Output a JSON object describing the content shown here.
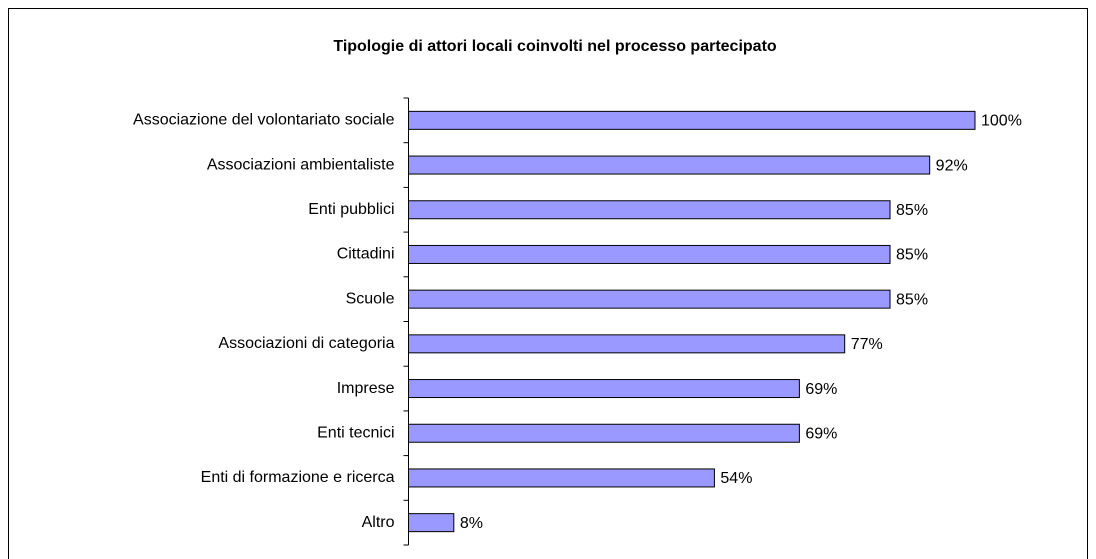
{
  "chart_data": {
    "type": "bar",
    "orientation": "horizontal",
    "title": "Tipologie di attori locali coinvolti nel processo partecipato",
    "categories": [
      "Associazione del volontariato sociale",
      "Associazioni ambientaliste",
      "Enti pubblici",
      "Cittadini",
      "Scuole",
      "Associazioni di categoria",
      "Imprese",
      "Enti tecnici",
      "Enti di formazione e ricerca",
      "Altro"
    ],
    "values": [
      100,
      92,
      85,
      85,
      85,
      77,
      69,
      69,
      54,
      8
    ],
    "value_labels": [
      "100%",
      "92%",
      "85%",
      "85%",
      "85%",
      "77%",
      "69%",
      "69%",
      "54%",
      "8%"
    ],
    "color": "#9999ff",
    "xlim": [
      0,
      100
    ]
  }
}
